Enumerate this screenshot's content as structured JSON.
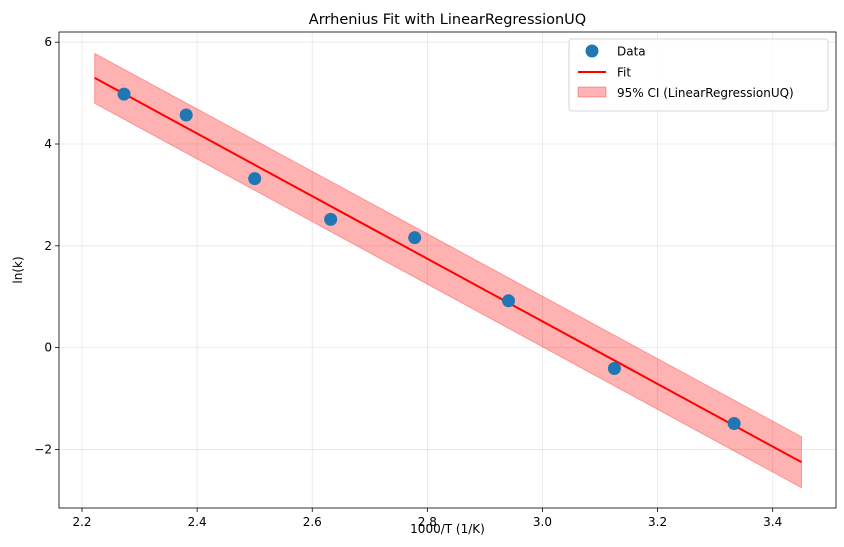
{
  "chart_data": {
    "type": "scatter",
    "title": "Arrhenius Fit with LinearRegressionUQ",
    "xlabel": "1000/T (1/K)",
    "ylabel": "ln(k)",
    "xlim": [
      2.16,
      3.51
    ],
    "ylim": [
      -3.15,
      6.2
    ],
    "grid": true,
    "legend_position": "top-right",
    "xticks": [
      2.2,
      2.4,
      2.6,
      2.8,
      3.0,
      3.2,
      3.4
    ],
    "xtick_labels": [
      "2.2",
      "2.4",
      "2.6",
      "2.8",
      "3.0",
      "3.2",
      "3.4"
    ],
    "yticks": [
      -2,
      0,
      2,
      4,
      6
    ],
    "ytick_labels": [
      "−2",
      "0",
      "2",
      "4",
      "6"
    ],
    "series": [
      {
        "name": "Data",
        "kind": "scatter",
        "color": "#1f77b4",
        "x": [
          2.273,
          2.381,
          2.5,
          2.632,
          2.778,
          2.941,
          3.125,
          3.333
        ],
        "y": [
          4.98,
          4.57,
          3.32,
          2.52,
          2.16,
          0.92,
          -0.41,
          -1.49
        ]
      },
      {
        "name": "Fit",
        "kind": "line",
        "color": "#ff0000",
        "x": [
          2.222,
          3.45
        ],
        "y": [
          5.3,
          -2.25
        ]
      },
      {
        "name": "95% CI (LinearRegressionUQ)",
        "kind": "band",
        "color": "#ff0000",
        "x": [
          2.222,
          3.45
        ],
        "upper": [
          5.78,
          -1.75
        ],
        "lower": [
          4.8,
          -2.75
        ]
      }
    ]
  }
}
